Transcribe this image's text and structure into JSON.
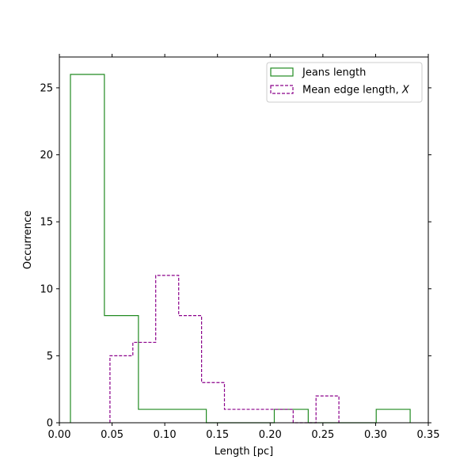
{
  "chart_data": {
    "type": "histogram",
    "xlabel": "Length [pc]",
    "ylabel": "Occurrence",
    "xlim": [
      0.0,
      0.35
    ],
    "ylim": [
      0,
      27.3
    ],
    "x_ticks": [
      0.0,
      0.05,
      0.1,
      0.15,
      0.2,
      0.25,
      0.3,
      0.35
    ],
    "x_tick_labels": [
      "0.00",
      "0.05",
      "0.10",
      "0.15",
      "0.20",
      "0.25",
      "0.30",
      "0.35"
    ],
    "y_ticks": [
      0,
      5,
      10,
      15,
      20,
      25
    ],
    "y_tick_labels": [
      "0",
      "5",
      "10",
      "15",
      "20",
      "25"
    ],
    "grid": false,
    "legend_position": "top-right",
    "series": [
      {
        "name": "Jeans length",
        "style": "solid",
        "color": "#228B22",
        "bin_edges": [
          0.0105,
          0.0427,
          0.075,
          0.1072,
          0.1394,
          0.1717,
          0.2039,
          0.2361,
          0.2684,
          0.3006,
          0.3328
        ],
        "counts": [
          26,
          8,
          1,
          1,
          0,
          0,
          1,
          0,
          0,
          1
        ]
      },
      {
        "name": "Mean edge length, X",
        "style": "dashed",
        "color": "#8B008B",
        "bin_edges": [
          0.048,
          0.0697,
          0.0914,
          0.1132,
          0.1349,
          0.1566,
          0.1783,
          0.2,
          0.2218,
          0.2435,
          0.2652
        ],
        "counts": [
          5,
          6,
          11,
          8,
          3,
          1,
          1,
          1,
          0,
          2
        ]
      }
    ]
  }
}
